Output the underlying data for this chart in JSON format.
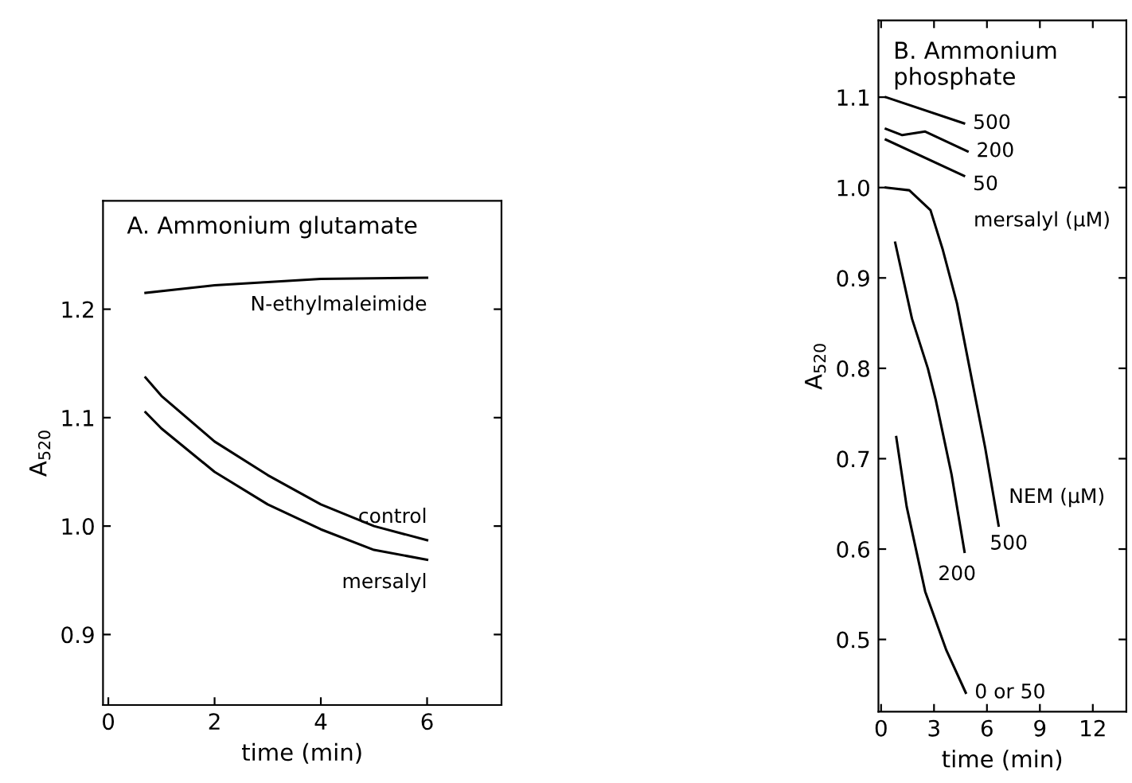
{
  "chart_data": [
    {
      "type": "line",
      "title": "A. Ammonium glutamate",
      "xlabel": "time (min)",
      "ylabel": "A$_{520}$",
      "xlim": [
        -0.1,
        7.4
      ],
      "ylim": [
        0.835,
        1.3
      ],
      "xticks": [
        0,
        2,
        4,
        6
      ],
      "yticks": [
        0.9,
        {
          "value": 1.0,
          "label": "1.0"
        },
        1.1,
        1.2
      ],
      "grid": false,
      "legend": false,
      "marker": "none",
      "line_style": "solid",
      "series": [
        {
          "name": "N-ethylmaleimide",
          "color": "#000000",
          "x": [
            0.7,
            2,
            4,
            6
          ],
          "values": [
            1.215,
            1.222,
            1.228,
            1.229
          ]
        },
        {
          "name": "control",
          "color": "#000000",
          "x": [
            0.7,
            1,
            2,
            3,
            4,
            5,
            6
          ],
          "values": [
            1.137,
            1.12,
            1.078,
            1.047,
            1.02,
            1.0,
            0.987
          ]
        },
        {
          "name": "mersalyl",
          "color": "#000000",
          "x": [
            0.7,
            1,
            2,
            3,
            4,
            5,
            6
          ],
          "values": [
            1.105,
            1.09,
            1.05,
            1.02,
            0.997,
            0.978,
            0.969
          ]
        }
      ]
    },
    {
      "type": "line",
      "title": "B. Ammonium\nphosphate",
      "xlabel": "time (min)",
      "ylabel": "A$_{520}$",
      "xlim": [
        -0.15,
        13.9
      ],
      "ylim": [
        0.42,
        1.185
      ],
      "xticks": [
        0,
        3,
        6,
        9,
        12
      ],
      "yticks": [
        0.5,
        0.6,
        0.7,
        0.8,
        0.9,
        {
          "value": 1.0,
          "label": "1.0"
        },
        1.1
      ],
      "grid": false,
      "legend": false,
      "marker": "none",
      "line_style": "solid",
      "annotations": [
        "mersalyl (µM)",
        "NEM (µM)"
      ],
      "series": [
        {
          "name": "500",
          "color": "#000000",
          "x": [
            0.27,
            4.7
          ],
          "values": [
            1.1,
            1.071
          ]
        },
        {
          "name": "200",
          "color": "#000000",
          "x": [
            0.27,
            1.2,
            2.5,
            4.9
          ],
          "values": [
            1.065,
            1.058,
            1.062,
            1.04
          ]
        },
        {
          "name": "50",
          "color": "#000000",
          "x": [
            0.27,
            4.7
          ],
          "values": [
            1.053,
            1.013
          ]
        },
        {
          "name": "500",
          "color": "#000000",
          "x": [
            0.27,
            1.6,
            2.8,
            3.5,
            4.3,
            5.0,
            5.9,
            6.66
          ],
          "values": [
            1.0,
            0.997,
            0.975,
            0.931,
            0.872,
            0.802,
            0.712,
            0.626
          ]
        },
        {
          "name": "200",
          "color": "#000000",
          "x": [
            0.8,
            1.75,
            2.65,
            3.1,
            4.0,
            4.73
          ],
          "values": [
            0.939,
            0.855,
            0.8,
            0.765,
            0.682,
            0.597
          ]
        },
        {
          "name": "0 or 50",
          "color": "#000000",
          "x": [
            0.86,
            1.45,
            2.5,
            3.7,
            4.8
          ],
          "values": [
            0.724,
            0.647,
            0.553,
            0.488,
            0.441
          ]
        }
      ]
    }
  ]
}
